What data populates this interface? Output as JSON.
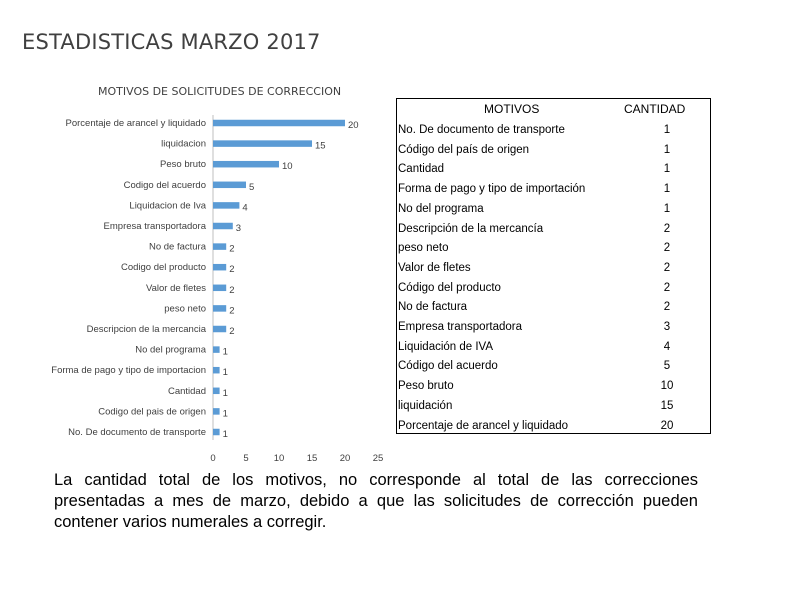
{
  "page_title": "ESTADISTICAS MARZO 2017",
  "chart_data": {
    "type": "bar",
    "orientation": "horizontal",
    "title": "MOTIVOS DE SOLICITUDES DE CORRECCION",
    "categories": [
      "Porcentaje de arancel y liquidado",
      "liquidacion",
      "Peso bruto",
      "Codigo del acuerdo",
      "Liquidacion de Iva",
      "Empresa transportadora",
      "No de factura",
      "Codigo del producto",
      "Valor de fletes",
      "peso neto",
      "Descripcion de la mercancia",
      "No del programa",
      "Forma de pago y tipo de importacion",
      "Cantidad",
      "Codigo del pais de origen",
      "No. De documento de transporte"
    ],
    "values": [
      20,
      15,
      10,
      5,
      4,
      3,
      2,
      2,
      2,
      2,
      2,
      1,
      1,
      1,
      1,
      1
    ],
    "xlim": [
      0,
      25
    ],
    "xticks": [
      "0",
      "5",
      "10",
      "15",
      "20",
      "25"
    ],
    "bar_color": "#5b9bd5",
    "grid": false,
    "legend": "none"
  },
  "table": {
    "headers": [
      "MOTIVOS",
      "CANTIDAD"
    ],
    "rows": [
      {
        "motivo": "No. De documento de transporte",
        "cantidad": "1"
      },
      {
        "motivo": "Código del país de origen",
        "cantidad": "1"
      },
      {
        "motivo": "Cantidad",
        "cantidad": "1"
      },
      {
        "motivo": "Forma de pago y tipo de importación",
        "cantidad": "1"
      },
      {
        "motivo": "No del programa",
        "cantidad": "1"
      },
      {
        "motivo": "Descripción de la mercancía",
        "cantidad": "2"
      },
      {
        "motivo": "peso neto",
        "cantidad": "2"
      },
      {
        "motivo": "Valor de fletes",
        "cantidad": "2"
      },
      {
        "motivo": "Código del producto",
        "cantidad": "2"
      },
      {
        "motivo": "No de factura",
        "cantidad": "2"
      },
      {
        "motivo": "Empresa transportadora",
        "cantidad": "3"
      },
      {
        "motivo": "Liquidación de IVA",
        "cantidad": "4"
      },
      {
        "motivo": "Código del acuerdo",
        "cantidad": "5"
      },
      {
        "motivo": "Peso bruto",
        "cantidad": "10"
      },
      {
        "motivo": "liquidación",
        "cantidad": "15"
      },
      {
        "motivo": "Porcentaje de arancel y liquidado",
        "cantidad": "20"
      }
    ]
  },
  "footnote": "La cantidad total de los motivos, no corresponde al total de las correcciones presentadas a mes de marzo, debido a que las solicitudes de corrección pueden contener varios numerales a corregir."
}
